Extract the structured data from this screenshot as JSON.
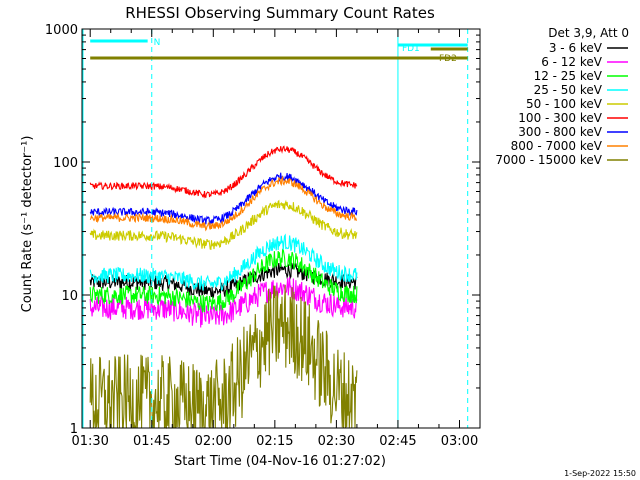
{
  "chart_data": {
    "type": "line",
    "title": "RHESSI Observing Summary Count Rates",
    "xlabel": "Start Time (04-Nov-16 01:27:02)",
    "ylabel": "Count Rate (s⁻¹ detector⁻¹)",
    "y_scale": "log",
    "ylim": [
      1,
      1000
    ],
    "xlim_minutes": [
      -2,
      95
    ],
    "x_ticks": [
      {
        "label": "01:30",
        "minute": 0
      },
      {
        "label": "01:45",
        "minute": 15
      },
      {
        "label": "02:00",
        "minute": 30
      },
      {
        "label": "02:15",
        "minute": 45
      },
      {
        "label": "02:30",
        "minute": 60
      },
      {
        "label": "02:45",
        "minute": 75
      },
      {
        "label": "03:00",
        "minute": 90
      }
    ],
    "y_ticks": [
      {
        "label": "1",
        "value": 1
      },
      {
        "label": "10",
        "value": 10
      },
      {
        "label": "100",
        "value": 100
      },
      {
        "label": "1000",
        "value": 1000
      }
    ],
    "legend_title": "Det 3,9, Att 0",
    "legend_position": "right",
    "series": [
      {
        "name": "3 - 6 keV",
        "color": "#000000",
        "base": 12.5,
        "peak": 15.5,
        "noise": 0.06
      },
      {
        "name": "6 - 12 keV",
        "color": "#ff00ff",
        "base": 8,
        "peak": 11.5,
        "noise": 0.09
      },
      {
        "name": "12 - 25 keV",
        "color": "#00ff00",
        "base": 10,
        "peak": 19,
        "noise": 0.07
      },
      {
        "name": "25 - 50 keV",
        "color": "#00ffff",
        "base": 14,
        "peak": 25,
        "noise": 0.06
      },
      {
        "name": "50 - 100 keV",
        "color": "#cccc00",
        "base": 28,
        "peak": 48,
        "noise": 0.04
      },
      {
        "name": "100 - 300 keV",
        "color": "#ff0000",
        "base": 66,
        "peak": 125,
        "noise": 0.025
      },
      {
        "name": "300 - 800 keV",
        "color": "#0000ff",
        "base": 42,
        "peak": 78,
        "noise": 0.03
      },
      {
        "name": "800 - 7000 keV",
        "color": "#ff8000",
        "base": 38,
        "peak": 72,
        "noise": 0.03
      },
      {
        "name": "7000 - 15000 keV",
        "color": "#808000",
        "base": 1.6,
        "peak": 5.8,
        "noise": 0.35
      }
    ],
    "data_start_minute": 0,
    "data_end_minute": 65,
    "dip_center_minute": 30,
    "peak_center_minute": 47,
    "night_start_minute": 15,
    "night_end_minute": 75,
    "saa_start_minute": 92,
    "annotations": [
      {
        "label": "N",
        "color": "#00ffff",
        "start_minute": 0,
        "end_minute": 14
      },
      {
        "label": "FD1",
        "color": "#00ffff",
        "start_minute": 75,
        "end_minute": 92
      },
      {
        "label": "FD2",
        "color": "#808000",
        "start_minute": 0,
        "end_minute": 92
      }
    ],
    "footer_date": "1-Sep-2022 15:50"
  }
}
